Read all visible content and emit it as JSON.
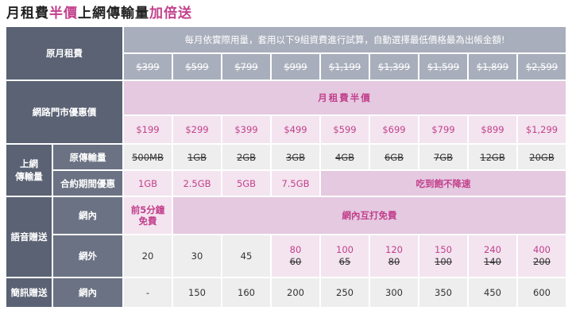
{
  "title": {
    "prefix": "月租費",
    "highlight": "半價",
    "middle": "上網傳輸量",
    "suffix": "加倍送"
  },
  "rows": {
    "original_fee": {
      "label": "原月租費",
      "note": "每月依實際用量，套用以下9組資費進行試算，自動選擇最低價格最為出帳金額!",
      "prices": [
        "$399",
        "$599",
        "$799",
        "$999",
        "$1,199",
        "$1,399",
        "$1,599",
        "$1,899",
        "$2,599"
      ]
    },
    "store_offer": {
      "label": "網路門市優惠價",
      "banner": "月租費半價",
      "prices": [
        "$199",
        "$299",
        "$399",
        "$499",
        "$599",
        "$699",
        "$799",
        "$899",
        "$1,299"
      ]
    },
    "data": {
      "group_label_line1": "上網",
      "group_label_line2": "傳輸量",
      "original_label": "原傳輸量",
      "original_values": [
        "500MB",
        "1GB",
        "2GB",
        "3GB",
        "4GB",
        "6GB",
        "7GB",
        "12GB",
        "20GB"
      ],
      "contract_label": "合約期間優惠",
      "contract_values": [
        "1GB",
        "2.5GB",
        "5GB",
        "7.5GB"
      ],
      "contract_unlimited": "吃到飽不降速"
    },
    "voice": {
      "group_label": "語音贈送",
      "onnet_label": "網內",
      "onnet_first_line1": "前5分鐘",
      "onnet_first_line2": "免費",
      "onnet_free": "網內互打免費",
      "offnet_label": "網外",
      "offnet_plain": [
        "20",
        "30",
        "45"
      ],
      "offnet_new": [
        "80",
        "100",
        "120",
        "150",
        "240",
        "400"
      ],
      "offnet_old": [
        "60",
        "65",
        "80",
        "100",
        "140",
        "200"
      ]
    },
    "sms": {
      "group_label": "簡訊贈送",
      "onnet_label": "網內",
      "values": [
        "-",
        "150",
        "160",
        "200",
        "250",
        "300",
        "350",
        "450",
        "600"
      ]
    }
  },
  "colors": {
    "accent": "#c2408c",
    "header": "#5a6274",
    "pink_band": "#e4c9e0",
    "pink_light": "#f3e4ef",
    "gray_band": "#a8aebb",
    "gray_cell": "#eeeeee"
  }
}
